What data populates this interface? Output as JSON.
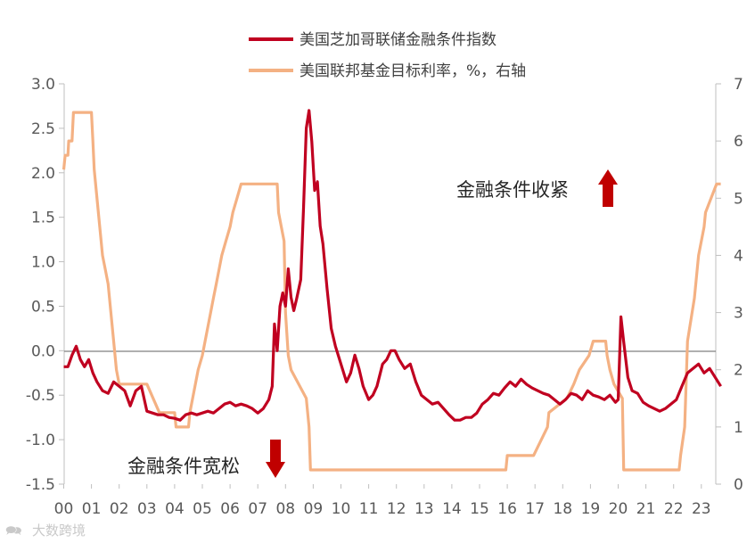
{
  "chart_data": {
    "type": "line",
    "x": [
      "00",
      "01",
      "02",
      "03",
      "04",
      "05",
      "06",
      "07",
      "08",
      "09",
      "10",
      "11",
      "12",
      "13",
      "14",
      "15",
      "16",
      "17",
      "18",
      "19",
      "20",
      "21",
      "22",
      "23"
    ],
    "y_left": {
      "ylim": [
        -1.5,
        3.0
      ],
      "ticks": [
        {
          "value": 3.0,
          "label": "3.0"
        },
        {
          "value": 2.5,
          "label": "2.5"
        },
        {
          "value": 2.0,
          "label": "2.0"
        },
        {
          "value": 1.5,
          "label": "1.5"
        },
        {
          "value": 1.0,
          "label": "1.0"
        },
        {
          "value": 0.5,
          "label": "0.5"
        },
        {
          "value": 0.0,
          "label": "0.0"
        },
        {
          "value": -0.5,
          "label": "-0.5"
        },
        {
          "value": -1.0,
          "label": "-1.0"
        },
        {
          "value": -1.5,
          "label": "-1.5"
        }
      ]
    },
    "y_right": {
      "ylim": [
        0,
        7
      ],
      "ticks": [
        {
          "value": 7,
          "label": "7"
        },
        {
          "value": 6,
          "label": "6"
        },
        {
          "value": 5,
          "label": "5"
        },
        {
          "value": 4,
          "label": "4"
        },
        {
          "value": 3,
          "label": "3"
        },
        {
          "value": 2,
          "label": "2"
        },
        {
          "value": 1,
          "label": "1"
        },
        {
          "value": 0,
          "label": "0"
        }
      ]
    },
    "legend_position": "top-center",
    "series": [
      {
        "name": "美国芝加哥联储金融条件指数",
        "axis": "left",
        "color": "#c00020",
        "points": [
          [
            0.0,
            -0.18
          ],
          [
            0.15,
            -0.18
          ],
          [
            0.3,
            -0.05
          ],
          [
            0.45,
            0.05
          ],
          [
            0.6,
            -0.1
          ],
          [
            0.75,
            -0.18
          ],
          [
            0.9,
            -0.1
          ],
          [
            1.05,
            -0.25
          ],
          [
            1.2,
            -0.35
          ],
          [
            1.4,
            -0.45
          ],
          [
            1.6,
            -0.48
          ],
          [
            1.8,
            -0.35
          ],
          [
            2.0,
            -0.4
          ],
          [
            2.2,
            -0.45
          ],
          [
            2.4,
            -0.62
          ],
          [
            2.6,
            -0.45
          ],
          [
            2.8,
            -0.4
          ],
          [
            3.0,
            -0.68
          ],
          [
            3.2,
            -0.7
          ],
          [
            3.4,
            -0.72
          ],
          [
            3.6,
            -0.72
          ],
          [
            3.8,
            -0.75
          ],
          [
            4.0,
            -0.76
          ],
          [
            4.2,
            -0.78
          ],
          [
            4.4,
            -0.72
          ],
          [
            4.6,
            -0.7
          ],
          [
            4.8,
            -0.72
          ],
          [
            5.0,
            -0.7
          ],
          [
            5.2,
            -0.68
          ],
          [
            5.4,
            -0.7
          ],
          [
            5.6,
            -0.65
          ],
          [
            5.8,
            -0.6
          ],
          [
            6.0,
            -0.58
          ],
          [
            6.2,
            -0.62
          ],
          [
            6.4,
            -0.6
          ],
          [
            6.6,
            -0.62
          ],
          [
            6.8,
            -0.65
          ],
          [
            7.0,
            -0.7
          ],
          [
            7.2,
            -0.65
          ],
          [
            7.4,
            -0.55
          ],
          [
            7.52,
            -0.4
          ],
          [
            7.6,
            0.3
          ],
          [
            7.7,
            0.0
          ],
          [
            7.8,
            0.5
          ],
          [
            7.9,
            0.65
          ],
          [
            8.0,
            0.5
          ],
          [
            8.1,
            0.92
          ],
          [
            8.2,
            0.6
          ],
          [
            8.3,
            0.45
          ],
          [
            8.4,
            0.58
          ],
          [
            8.55,
            0.8
          ],
          [
            8.65,
            1.6
          ],
          [
            8.75,
            2.5
          ],
          [
            8.85,
            2.7
          ],
          [
            8.95,
            2.35
          ],
          [
            9.05,
            1.8
          ],
          [
            9.15,
            1.9
          ],
          [
            9.25,
            1.4
          ],
          [
            9.35,
            1.2
          ],
          [
            9.5,
            0.7
          ],
          [
            9.65,
            0.25
          ],
          [
            9.8,
            0.05
          ],
          [
            10.0,
            -0.15
          ],
          [
            10.2,
            -0.35
          ],
          [
            10.35,
            -0.25
          ],
          [
            10.5,
            -0.05
          ],
          [
            10.65,
            -0.2
          ],
          [
            10.8,
            -0.4
          ],
          [
            11.0,
            -0.55
          ],
          [
            11.15,
            -0.5
          ],
          [
            11.3,
            -0.4
          ],
          [
            11.5,
            -0.15
          ],
          [
            11.65,
            -0.1
          ],
          [
            11.8,
            0.0
          ],
          [
            11.95,
            0.0
          ],
          [
            12.1,
            -0.1
          ],
          [
            12.3,
            -0.2
          ],
          [
            12.5,
            -0.15
          ],
          [
            12.7,
            -0.35
          ],
          [
            12.9,
            -0.5
          ],
          [
            13.1,
            -0.55
          ],
          [
            13.3,
            -0.6
          ],
          [
            13.5,
            -0.58
          ],
          [
            13.7,
            -0.65
          ],
          [
            13.9,
            -0.72
          ],
          [
            14.1,
            -0.78
          ],
          [
            14.3,
            -0.78
          ],
          [
            14.5,
            -0.75
          ],
          [
            14.7,
            -0.75
          ],
          [
            14.9,
            -0.7
          ],
          [
            15.1,
            -0.6
          ],
          [
            15.3,
            -0.55
          ],
          [
            15.5,
            -0.48
          ],
          [
            15.7,
            -0.5
          ],
          [
            15.9,
            -0.42
          ],
          [
            16.1,
            -0.35
          ],
          [
            16.3,
            -0.4
          ],
          [
            16.5,
            -0.32
          ],
          [
            16.7,
            -0.38
          ],
          [
            16.9,
            -0.42
          ],
          [
            17.1,
            -0.45
          ],
          [
            17.3,
            -0.48
          ],
          [
            17.5,
            -0.5
          ],
          [
            17.7,
            -0.55
          ],
          [
            17.9,
            -0.6
          ],
          [
            18.1,
            -0.55
          ],
          [
            18.3,
            -0.48
          ],
          [
            18.5,
            -0.5
          ],
          [
            18.7,
            -0.55
          ],
          [
            18.9,
            -0.45
          ],
          [
            19.1,
            -0.5
          ],
          [
            19.3,
            -0.52
          ],
          [
            19.5,
            -0.55
          ],
          [
            19.7,
            -0.5
          ],
          [
            19.9,
            -0.58
          ],
          [
            20.0,
            -0.55
          ],
          [
            20.1,
            0.38
          ],
          [
            20.2,
            0.1
          ],
          [
            20.35,
            -0.3
          ],
          [
            20.5,
            -0.45
          ],
          [
            20.7,
            -0.48
          ],
          [
            20.9,
            -0.58
          ],
          [
            21.1,
            -0.62
          ],
          [
            21.3,
            -0.65
          ],
          [
            21.5,
            -0.68
          ],
          [
            21.7,
            -0.65
          ],
          [
            21.9,
            -0.6
          ],
          [
            22.1,
            -0.55
          ],
          [
            22.3,
            -0.4
          ],
          [
            22.5,
            -0.25
          ],
          [
            22.7,
            -0.2
          ],
          [
            22.9,
            -0.15
          ],
          [
            23.1,
            -0.25
          ],
          [
            23.3,
            -0.2
          ],
          [
            23.5,
            -0.3
          ],
          [
            23.7,
            -0.4
          ]
        ]
      },
      {
        "name": "美国联邦基金目标利率，%，右轴",
        "axis": "right",
        "color": "#f4b183",
        "points": [
          [
            0.0,
            5.5
          ],
          [
            0.05,
            5.75
          ],
          [
            0.15,
            5.75
          ],
          [
            0.18,
            6.0
          ],
          [
            0.3,
            6.0
          ],
          [
            0.35,
            6.5
          ],
          [
            1.0,
            6.5
          ],
          [
            1.05,
            6.0
          ],
          [
            1.1,
            5.5
          ],
          [
            1.2,
            5.0
          ],
          [
            1.3,
            4.5
          ],
          [
            1.4,
            4.0
          ],
          [
            1.5,
            3.75
          ],
          [
            1.6,
            3.5
          ],
          [
            1.7,
            3.0
          ],
          [
            1.8,
            2.5
          ],
          [
            1.9,
            2.0
          ],
          [
            2.0,
            1.75
          ],
          [
            3.0,
            1.75
          ],
          [
            3.45,
            1.25
          ],
          [
            4.0,
            1.25
          ],
          [
            4.05,
            1.0
          ],
          [
            4.5,
            1.0
          ],
          [
            4.55,
            1.25
          ],
          [
            4.65,
            1.5
          ],
          [
            4.75,
            1.75
          ],
          [
            4.85,
            2.0
          ],
          [
            5.0,
            2.25
          ],
          [
            5.1,
            2.5
          ],
          [
            5.2,
            2.75
          ],
          [
            5.3,
            3.0
          ],
          [
            5.4,
            3.25
          ],
          [
            5.5,
            3.5
          ],
          [
            5.6,
            3.75
          ],
          [
            5.7,
            4.0
          ],
          [
            5.85,
            4.25
          ],
          [
            6.0,
            4.5
          ],
          [
            6.1,
            4.75
          ],
          [
            6.25,
            5.0
          ],
          [
            6.4,
            5.25
          ],
          [
            7.7,
            5.25
          ],
          [
            7.75,
            4.75
          ],
          [
            7.85,
            4.5
          ],
          [
            7.95,
            4.25
          ],
          [
            8.0,
            3.0
          ],
          [
            8.1,
            2.25
          ],
          [
            8.2,
            2.0
          ],
          [
            8.75,
            1.5
          ],
          [
            8.85,
            1.0
          ],
          [
            8.9,
            0.25
          ],
          [
            15.95,
            0.25
          ],
          [
            16.0,
            0.5
          ],
          [
            16.95,
            0.5
          ],
          [
            17.2,
            0.75
          ],
          [
            17.45,
            1.0
          ],
          [
            17.5,
            1.25
          ],
          [
            18.15,
            1.5
          ],
          [
            18.4,
            1.75
          ],
          [
            18.6,
            2.0
          ],
          [
            18.95,
            2.25
          ],
          [
            19.1,
            2.5
          ],
          [
            19.55,
            2.5
          ],
          [
            19.6,
            2.25
          ],
          [
            19.7,
            2.0
          ],
          [
            19.85,
            1.75
          ],
          [
            20.15,
            1.5
          ],
          [
            20.2,
            0.25
          ],
          [
            22.2,
            0.25
          ],
          [
            22.25,
            0.5
          ],
          [
            22.4,
            1.0
          ],
          [
            22.45,
            1.75
          ],
          [
            22.5,
            2.5
          ],
          [
            22.75,
            3.25
          ],
          [
            22.9,
            4.0
          ],
          [
            23.1,
            4.5
          ],
          [
            23.15,
            4.75
          ],
          [
            23.35,
            5.0
          ],
          [
            23.55,
            5.25
          ],
          [
            23.7,
            5.25
          ]
        ]
      }
    ],
    "annotations": [
      {
        "text": "金融条件收紧",
        "arrow": "up",
        "color": "#c00000"
      },
      {
        "text": "金融条件宽松",
        "arrow": "down",
        "color": "#c00000"
      }
    ],
    "watermark": "大数跨境",
    "grid": false
  }
}
